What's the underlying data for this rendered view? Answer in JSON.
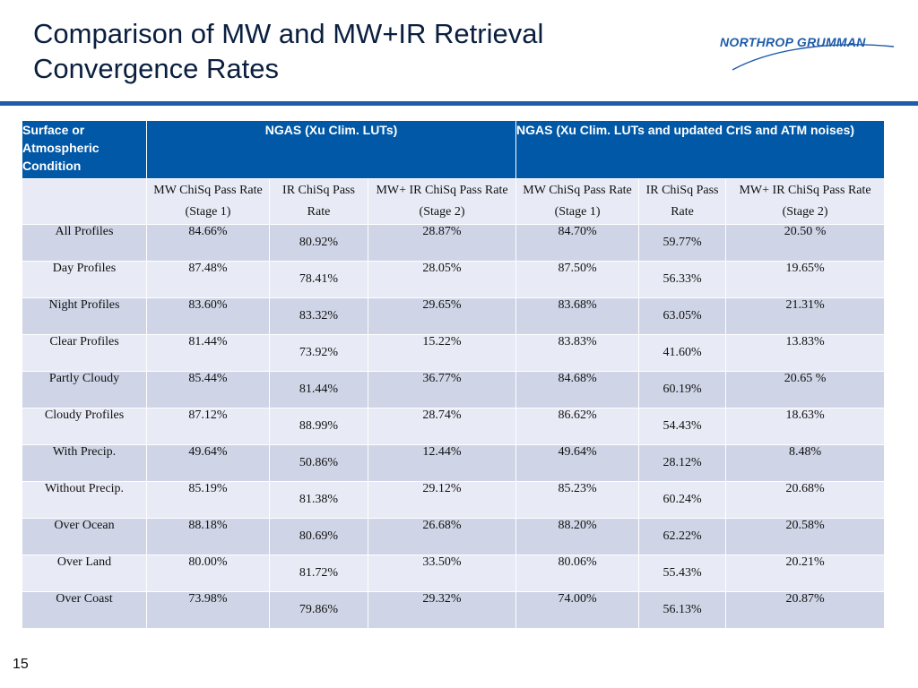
{
  "title": {
    "line1": "Comparison of MW and MW+IR Retrieval",
    "line2": "Convergence Rates"
  },
  "logo": {
    "text": "NORTHROP GRUMMAN"
  },
  "colors": {
    "header_bg": "#0058a7",
    "row_dark": "#cfd5e6",
    "row_light": "#e8ebf5",
    "rule": "#1f5ca9"
  },
  "table": {
    "header": {
      "condition": "Surface or Atmospheric Condition",
      "group1": "NGAS (Xu Clim. LUTs)",
      "group2": "NGAS (Xu Clim. LUTs and updated CrIS and ATM noises)"
    },
    "subheaders": [
      "MW ChiSq Pass Rate (Stage 1)",
      "IR ChiSq Pass Rate",
      "MW+ IR ChiSq Pass Rate (Stage 2)",
      "MW ChiSq Pass Rate (Stage 1)",
      "IR ChiSq Pass Rate",
      "MW+ IR ChiSq Pass Rate (Stage 2)"
    ],
    "rows": [
      [
        "All Profiles",
        "84.66%",
        "80.92%",
        "28.87%",
        "84.70%",
        "59.77%",
        "20.50 %"
      ],
      [
        "Day Profiles",
        "87.48%",
        "78.41%",
        "28.05%",
        "87.50%",
        "56.33%",
        "19.65%"
      ],
      [
        "Night Profiles",
        "83.60%",
        "83.32%",
        "29.65%",
        "83.68%",
        "63.05%",
        "21.31%"
      ],
      [
        "Clear Profiles",
        "81.44%",
        "73.92%",
        "15.22%",
        "83.83%",
        "41.60%",
        "13.83%"
      ],
      [
        "Partly Cloudy",
        "85.44%",
        "81.44%",
        "36.77%",
        "84.68%",
        "60.19%",
        "20.65 %"
      ],
      [
        "Cloudy Profiles",
        "87.12%",
        "88.99%",
        "28.74%",
        "86.62%",
        "54.43%",
        "18.63%"
      ],
      [
        "With Precip.",
        "49.64%",
        "50.86%",
        "12.44%",
        "49.64%",
        "28.12%",
        "8.48%"
      ],
      [
        "Without Precip.",
        "85.19%",
        "81.38%",
        "29.12%",
        "85.23%",
        "60.24%",
        "20.68%"
      ],
      [
        "Over Ocean",
        "88.18%",
        "80.69%",
        "26.68%",
        "88.20%",
        "62.22%",
        "20.58%"
      ],
      [
        "Over Land",
        "80.00%",
        "81.72%",
        "33.50%",
        "80.06%",
        "55.43%",
        "20.21%"
      ],
      [
        "Over Coast",
        "73.98%",
        "79.86%",
        "29.32%",
        "74.00%",
        "56.13%",
        "20.87%"
      ]
    ]
  },
  "page_number": "15"
}
